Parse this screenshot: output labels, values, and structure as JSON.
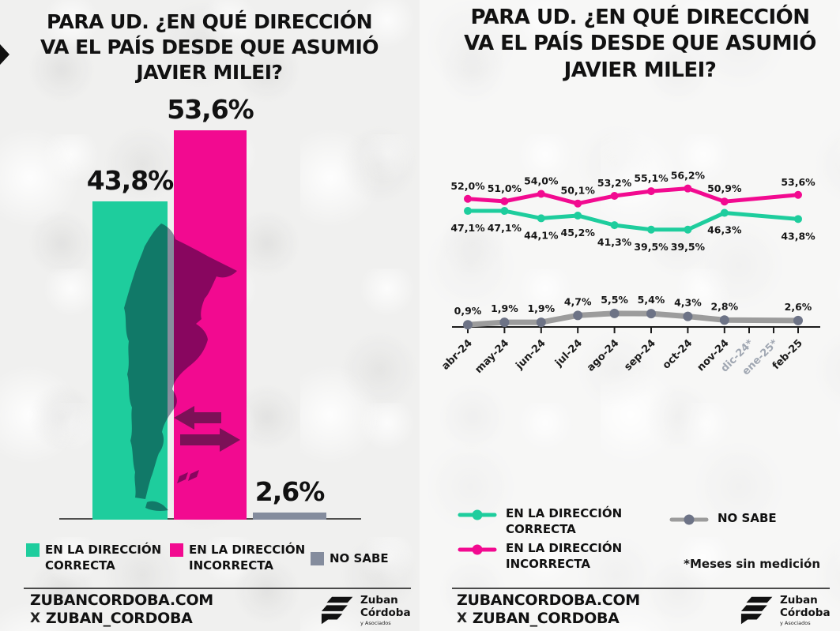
{
  "titles": {
    "left": "PARA UD. ¿EN QUÉ DIRECCIÓN\nVA EL PAÍS DESDE QUE ASUMIÓ\nJAVIER MILEI?",
    "right": "PARA UD. ¿EN QUÉ DIRECCIÓN\nVA EL PAÍS DESDE QUE ASUMIÓ\nJAVIER MILEI?"
  },
  "colors": {
    "correcta": "#1ecd9d",
    "incorrecta": "#f20a90",
    "no_sabe": "#848c9d",
    "no_sabe_line": "#9c9c9c",
    "no_sabe_dot": "#6d7386",
    "text": "#161616",
    "muted": "#a0a7b2",
    "map_overlay": "#8f97a8",
    "arrow": "#7c1157"
  },
  "chart_data": [
    {
      "type": "bar",
      "title": "PARA UD. ¿EN QUÉ DIRECCIÓN VA EL PAÍS DESDE QUE ASUMIÓ JAVIER MILEI?",
      "categories": [
        "EN LA DIRECCIÓN CORRECTA",
        "EN LA DIRECCIÓN INCORRECTA",
        "NO SABE"
      ],
      "values": [
        43.8,
        53.6,
        2.6
      ],
      "value_labels": [
        "43,8%",
        "53,6%",
        "2,6%"
      ],
      "bar_colors": [
        "#1ecd9d",
        "#f20a90",
        "#848c9d"
      ],
      "ylim": [
        0,
        60
      ]
    },
    {
      "type": "line",
      "title": "PARA UD. ¿EN QUÉ DIRECCIÓN VA EL PAÍS DESDE QUE ASUMIÓ JAVIER MILEI?",
      "x": [
        "abr-24",
        "may-24",
        "jun-24",
        "jul-24",
        "ago-24",
        "sep-24",
        "oct-24",
        "nov-24",
        "dic-24*",
        "ene-25*",
        "feb-25"
      ],
      "unmeasured_months": [
        "dic-24*",
        "ene-25*"
      ],
      "footnote": "*Meses sin medición",
      "ylim": [
        0,
        60
      ],
      "series": [
        {
          "name": "EN LA DIRECCIÓN CORRECTA",
          "color": "#1ecd9d",
          "values": [
            47.1,
            47.1,
            44.1,
            45.2,
            41.3,
            39.5,
            39.5,
            46.3,
            null,
            null,
            43.8
          ],
          "labels": [
            "47,1%",
            "47,1%",
            "44,1%",
            "45,2%",
            "41,3%",
            "39,5%",
            "39,5%",
            "46,3%",
            null,
            null,
            "43,8%"
          ]
        },
        {
          "name": "EN LA DIRECCIÓN INCORRECTA",
          "color": "#f20a90",
          "values": [
            52.0,
            51.0,
            54.0,
            50.1,
            53.2,
            55.1,
            56.2,
            50.9,
            null,
            null,
            53.6
          ],
          "labels": [
            "52,0%",
            "51,0%",
            "54,0%",
            "50,1%",
            "53,2%",
            "55,1%",
            "56,2%",
            "50,9%",
            null,
            null,
            "53,6%"
          ]
        },
        {
          "name": "NO SABE",
          "color": "#9c9c9c",
          "values": [
            0.9,
            1.9,
            1.9,
            4.7,
            5.5,
            5.4,
            4.3,
            2.8,
            null,
            null,
            2.6
          ],
          "labels": [
            "0,9%",
            "1,9%",
            "1,9%",
            "4,7%",
            "5,5%",
            "5,4%",
            "4,3%",
            "2,8%",
            null,
            null,
            "2,6%"
          ]
        }
      ]
    }
  ],
  "legend": {
    "correcta": "EN LA DIRECCIÓN\nCORRECTA",
    "incorrecta": "EN LA DIRECCIÓN\nINCORRECTA",
    "no_sabe": "NO SABE"
  },
  "footer": {
    "website": "ZUBANCORDOBA.COM",
    "x_logo": "X",
    "x_handle": "ZUBAN_CORDOBA",
    "brand_line1": "Zuban",
    "brand_line2": "Córdoba",
    "brand_line3": "y Asociados"
  }
}
